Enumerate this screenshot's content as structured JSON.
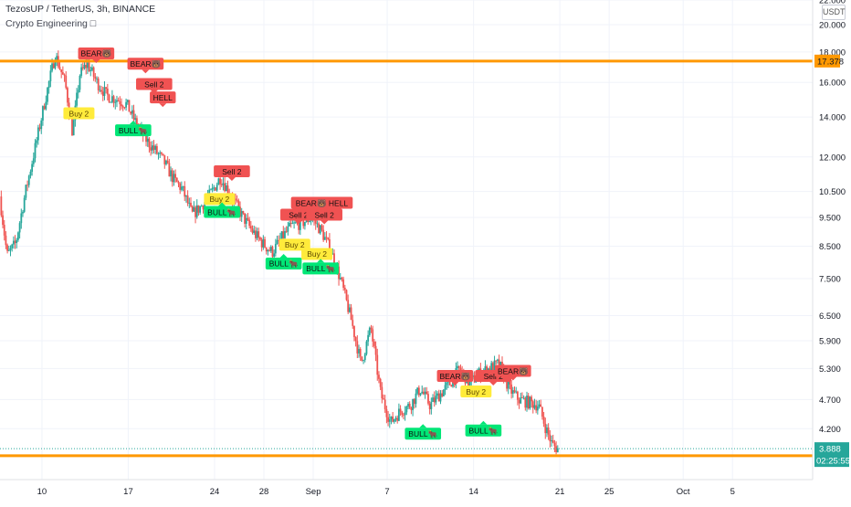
{
  "header": {
    "title": "TezosUP / TetherUS, 3h, BINANCE",
    "indicator": "Crypto Engineering □",
    "currency_badge": "USDT"
  },
  "colors": {
    "up": "#26a69a",
    "down": "#ef5350",
    "level_line": "#ff9800",
    "bull_label": "#00e676",
    "bear_label": "#f05252",
    "buy_label": "#ffeb3b",
    "last_price": "#26a69a",
    "countdown": "#26a69a"
  },
  "chart_data": {
    "type": "candlestick",
    "title": "TezosUP / TetherUS, 3h, BINANCE",
    "y_scale": "log",
    "ylim": [
      3.45,
      22.0
    ],
    "y_ticks": [
      "22.000",
      "20.000",
      "18.000",
      "16.000",
      "14.000",
      "12.000",
      "10.500",
      "9.500",
      "8.500",
      "7.500",
      "6.500",
      "5.900",
      "5.300",
      "4.700",
      "4.200"
    ],
    "y_tick_values": [
      22.0,
      20.0,
      18.0,
      16.0,
      14.0,
      12.0,
      10.5,
      9.5,
      8.5,
      7.5,
      6.5,
      5.9,
      5.3,
      4.7,
      4.2
    ],
    "x_ticks": [
      {
        "label": "10",
        "day": 0
      },
      {
        "label": "17",
        "day": 7
      },
      {
        "label": "24",
        "day": 14
      },
      {
        "label": "28",
        "day": 18
      },
      {
        "label": "Sep",
        "day": 22
      },
      {
        "label": "7",
        "day": 28
      },
      {
        "label": "14",
        "day": 35
      },
      {
        "label": "21",
        "day": 42
      },
      {
        "label": "25",
        "day": 46
      },
      {
        "label": "Oct",
        "day": 52
      },
      {
        "label": "5",
        "day": 56
      }
    ],
    "x_range_days": [
      -3.4,
      62.5
    ],
    "price_path": [
      [
        -3.3,
        10.3
      ],
      [
        -2.7,
        8.2
      ],
      [
        -2.0,
        8.6
      ],
      [
        -1.2,
        10.5
      ],
      [
        -0.4,
        12.5
      ],
      [
        0.4,
        15.0
      ],
      [
        1.2,
        17.8
      ],
      [
        2.0,
        16.0
      ],
      [
        2.6,
        13.2
      ],
      [
        3.2,
        16.5
      ],
      [
        3.8,
        17.2
      ],
      [
        4.6,
        16.0
      ],
      [
        5.4,
        15.2
      ],
      [
        6.2,
        15.0
      ],
      [
        7.0,
        14.7
      ],
      [
        7.8,
        13.6
      ],
      [
        8.6,
        12.8
      ],
      [
        9.3,
        12.3
      ],
      [
        10.0,
        11.8
      ],
      [
        10.8,
        11.0
      ],
      [
        11.5,
        10.6
      ],
      [
        12.3,
        9.6
      ],
      [
        13.0,
        9.9
      ],
      [
        13.8,
        10.4
      ],
      [
        14.6,
        11.1
      ],
      [
        15.5,
        10.3
      ],
      [
        16.3,
        9.6
      ],
      [
        17.2,
        9.0
      ],
      [
        18.0,
        8.6
      ],
      [
        18.8,
        8.3
      ],
      [
        19.6,
        8.8
      ],
      [
        20.4,
        9.2
      ],
      [
        21.2,
        9.3
      ],
      [
        22.0,
        9.5
      ],
      [
        22.8,
        9.0
      ],
      [
        23.6,
        8.3
      ],
      [
        24.4,
        7.4
      ],
      [
        25.2,
        6.4
      ],
      [
        26.0,
        5.4
      ],
      [
        26.8,
        6.2
      ],
      [
        27.6,
        4.8
      ],
      [
        28.4,
        4.3
      ],
      [
        29.2,
        4.5
      ],
      [
        30.0,
        4.6
      ],
      [
        30.8,
        4.9
      ],
      [
        31.6,
        4.6
      ],
      [
        32.4,
        4.8
      ],
      [
        33.2,
        5.0
      ],
      [
        34.0,
        5.3
      ],
      [
        34.8,
        5.0
      ],
      [
        35.6,
        5.2
      ],
      [
        36.4,
        5.3
      ],
      [
        37.2,
        5.4
      ],
      [
        38.0,
        4.9
      ],
      [
        38.8,
        4.7
      ],
      [
        39.6,
        4.65
      ],
      [
        40.4,
        4.6
      ],
      [
        41.0,
        4.2
      ],
      [
        41.5,
        3.95
      ],
      [
        41.9,
        3.89
      ]
    ],
    "levels": [
      {
        "price": 17.378,
        "label": "17.378"
      },
      {
        "price": 3.784,
        "label": "3.784"
      }
    ],
    "last_price": {
      "price": 3.888,
      "label": "3.888",
      "countdown": "02:25:55"
    },
    "annotations": [
      {
        "text": "BEAR🐻",
        "day": 4.4,
        "price": 17.9,
        "kind": "bear",
        "dir": "down"
      },
      {
        "text": "BEAR🐻",
        "day": 8.4,
        "price": 17.2,
        "kind": "bear",
        "dir": "down"
      },
      {
        "text": "Sell 2",
        "day": 9.1,
        "price": 15.9,
        "kind": "bear",
        "dir": "down"
      },
      {
        "text": "HELL",
        "day": 9.8,
        "price": 15.1,
        "kind": "bear",
        "dir": "down"
      },
      {
        "text": "Sell 2",
        "day": 15.4,
        "price": 11.35,
        "kind": "bear",
        "dir": "down"
      },
      {
        "text": "BEAR🐻 HELL",
        "day": 22.7,
        "price": 10.05,
        "kind": "bear",
        "dir": "down"
      },
      {
        "text": "Sell 2",
        "day": 20.8,
        "price": 9.6,
        "kind": "bear",
        "dir": "down"
      },
      {
        "text": "Sell 2",
        "day": 22.9,
        "price": 9.6,
        "kind": "bear",
        "dir": "down"
      },
      {
        "text": "BEAR🐻",
        "day": 33.5,
        "price": 5.15,
        "kind": "bear",
        "dir": "down"
      },
      {
        "text": "Sell 2",
        "day": 36.6,
        "price": 5.15,
        "kind": "bear",
        "dir": "down"
      },
      {
        "text": "BEAR🐻",
        "day": 38.2,
        "price": 5.25,
        "kind": "bear",
        "dir": "down"
      },
      {
        "text": "Buy 2",
        "day": 3.0,
        "price": 14.2,
        "kind": "buy",
        "dir": "none"
      },
      {
        "text": "Buy 2",
        "day": 14.4,
        "price": 10.2,
        "kind": "buy",
        "dir": "none"
      },
      {
        "text": "Buy 2",
        "day": 20.5,
        "price": 8.55,
        "kind": "buy",
        "dir": "none"
      },
      {
        "text": "Buy 2",
        "day": 22.3,
        "price": 8.25,
        "kind": "buy",
        "dir": "none"
      },
      {
        "text": "Buy 2",
        "day": 35.2,
        "price": 4.85,
        "kind": "buy",
        "dir": "none"
      },
      {
        "text": "BULL🐂",
        "day": 7.4,
        "price": 13.3,
        "kind": "bull",
        "dir": "up"
      },
      {
        "text": "BULL🐂",
        "day": 14.6,
        "price": 9.7,
        "kind": "bull",
        "dir": "up"
      },
      {
        "text": "BULL🐂",
        "day": 19.6,
        "price": 7.95,
        "kind": "bull",
        "dir": "up"
      },
      {
        "text": "BULL🐂",
        "day": 22.6,
        "price": 7.8,
        "kind": "bull",
        "dir": "up"
      },
      {
        "text": "BULL🐂",
        "day": 30.9,
        "price": 4.12,
        "kind": "bull",
        "dir": "up"
      },
      {
        "text": "BULL🐂",
        "day": 35.8,
        "price": 4.17,
        "kind": "bull",
        "dir": "up"
      }
    ]
  }
}
